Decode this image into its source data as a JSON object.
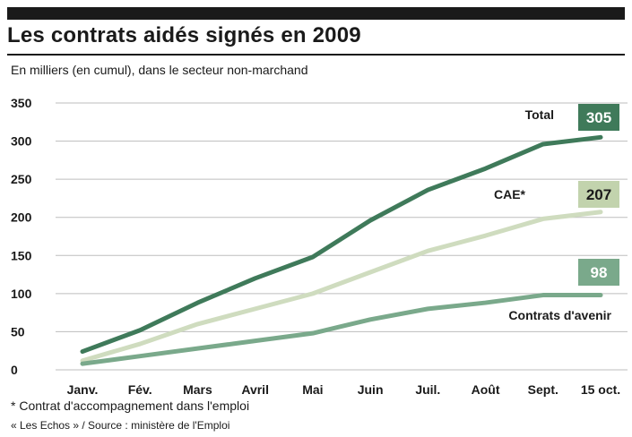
{
  "header": {
    "title": "Les contrats aidés signés en 2009",
    "subtitle": "En milliers (en cumul), dans le secteur non-marchand"
  },
  "footer": {
    "footnote": "* Contrat d'accompagnement dans l'emploi",
    "source": "« Les Echos » / Source : ministère de l'Emploi"
  },
  "chart_data": {
    "type": "line",
    "title": "Les contrats aidés signés en 2009",
    "ylim": [
      0,
      350
    ],
    "yticks": [
      0,
      50,
      100,
      150,
      200,
      250,
      300,
      350
    ],
    "grid": true,
    "categories": [
      "Janv.",
      "Fév.",
      "Mars",
      "Avril",
      "Mai",
      "Juin",
      "Juil.",
      "Août",
      "Sept.",
      "15 oct."
    ],
    "series": [
      {
        "name": "Total",
        "color": "#3f7a5a",
        "values": [
          24,
          52,
          88,
          120,
          148,
          196,
          236,
          264,
          296,
          305
        ],
        "end_label": "305",
        "badge_color": "#3f7a5a"
      },
      {
        "name": "CAE*",
        "color": "#cfdcbf",
        "values": [
          12,
          34,
          60,
          80,
          100,
          128,
          156,
          176,
          198,
          207
        ],
        "end_label": "207",
        "badge_color": "#c2d3ad"
      },
      {
        "name": "Contrats d'avenir",
        "color": "#7aa98b",
        "values": [
          8,
          18,
          28,
          38,
          48,
          66,
          80,
          88,
          98,
          98
        ],
        "end_label": "98",
        "badge_color": "#7aa98b"
      }
    ]
  }
}
